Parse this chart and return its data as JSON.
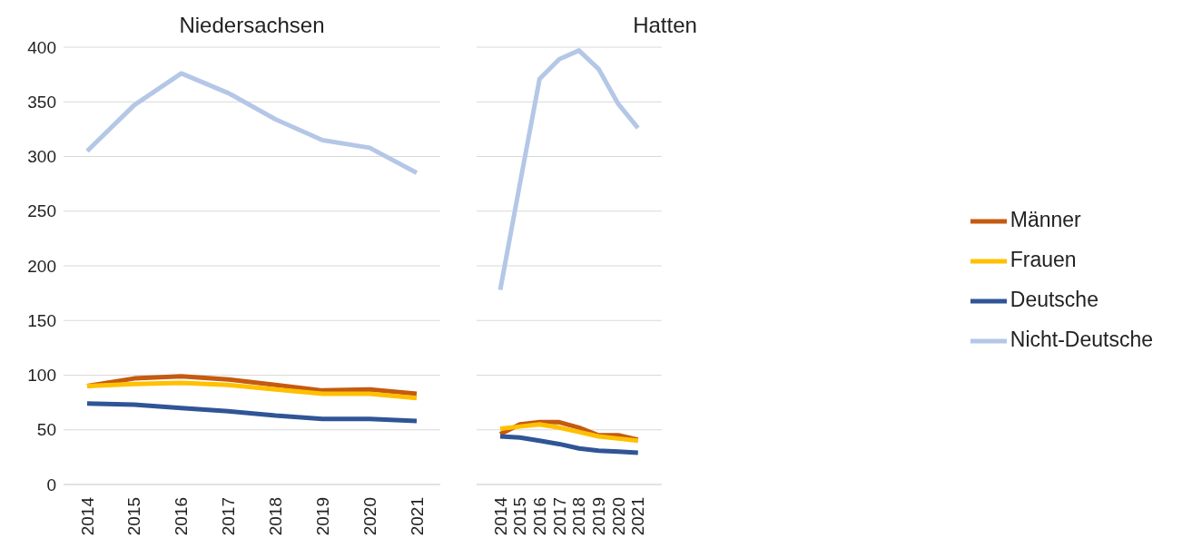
{
  "chart_data": [
    {
      "type": "line",
      "title": "Niedersachsen",
      "categories": [
        "2014",
        "2015",
        "2016",
        "2017",
        "2018",
        "2019",
        "2020",
        "2021"
      ],
      "ylim": [
        0,
        400
      ],
      "yticks": [
        0,
        50,
        100,
        150,
        200,
        250,
        300,
        350,
        400
      ],
      "grid": "y",
      "legend": false,
      "marker": "none",
      "line_style": "solid",
      "series": [
        {
          "color": "#b4c7e7",
          "values": [
            305,
            347,
            376,
            358,
            334,
            315,
            308,
            285
          ]
        },
        {
          "color": "#c55a11",
          "values": [
            90,
            97,
            99,
            96,
            91,
            86,
            87,
            83
          ]
        },
        {
          "color": "#ffc000",
          "values": [
            90,
            92,
            93,
            91,
            87,
            83,
            83,
            79
          ]
        },
        {
          "color": "#2f5597",
          "values": [
            74,
            73,
            70,
            67,
            63,
            60,
            60,
            58
          ]
        }
      ]
    },
    {
      "type": "line",
      "title": "Hatten",
      "categories": [
        "2014",
        "2015",
        "2016",
        "2017",
        "2018",
        "2019",
        "2020",
        "2021"
      ],
      "ylim": [
        0,
        400
      ],
      "yticks": [
        0,
        50,
        100,
        150,
        200,
        250,
        300,
        350,
        400
      ],
      "grid": "y",
      "legend": "right",
      "tick_labels": "x",
      "marker": "none",
      "line_style": "solid",
      "series": [
        {
          "name": "Männer",
          "color": "#c55a11",
          "values": [
            46,
            55,
            57,
            57,
            52,
            45,
            45,
            41
          ]
        },
        {
          "name": "Frauen",
          "color": "#ffc000",
          "values": [
            51,
            53,
            55,
            52,
            48,
            44,
            42,
            40
          ]
        },
        {
          "name": "Deutsche",
          "color": "#2f5597",
          "values": [
            44,
            43,
            40,
            37,
            33,
            31,
            30,
            29
          ]
        },
        {
          "name": "Nicht-Deutsche",
          "color": "#b4c7e7",
          "values": [
            178,
            275,
            371,
            389,
            397,
            380,
            348,
            326
          ]
        }
      ]
    }
  ]
}
